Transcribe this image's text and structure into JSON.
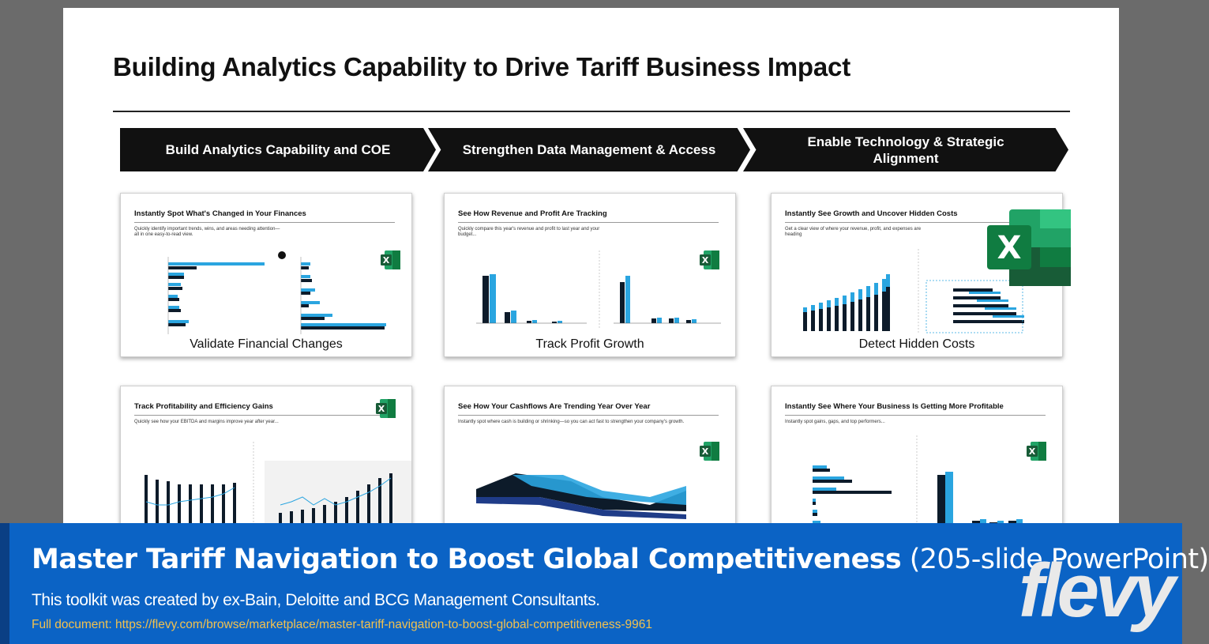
{
  "slide": {
    "title": "Building Analytics Capability to Drive Tariff Business Impact",
    "steps": [
      "Build Analytics Capability and COE",
      "Strengthen Data Management & Access",
      "Enable Technology & Strategic Alignment"
    ],
    "thumbnails": [
      {
        "heading": "Instantly Spot What's Changed in Your Finances",
        "subtitle": "Quickly identify important trends, wins, and areas needing attention—all in one easy-to-read view.",
        "caption": "Validate Financial Changes"
      },
      {
        "heading": "See How Revenue and Profit Are Tracking",
        "subtitle": "Quickly compare this year's revenue and profit to last year and your budget...",
        "caption": "Track Profit Growth"
      },
      {
        "heading": "Instantly See Growth and Uncover Hidden Costs",
        "subtitle": "Get a clear view of where your revenue, profit, and expenses are heading",
        "caption": "Detect Hidden Costs"
      },
      {
        "heading": "Track Profitability and Efficiency Gains",
        "subtitle": "Quickly see how your EBITDA and margins improve year after year...",
        "caption": ""
      },
      {
        "heading": "See How Your Cashflows Are Trending Year Over Year",
        "subtitle": "Instantly spot where cash is building or shrinking—so you can act fast to strengthen your company's growth.",
        "caption": ""
      },
      {
        "heading": "Instantly See Where Your Business Is Getting More Profitable",
        "subtitle": "Instantly spot gains, gaps, and top performers...",
        "caption": ""
      }
    ]
  },
  "banner": {
    "title_bold": "Master Tariff Navigation to Boost Global Competitiveness",
    "title_light": "(205-slide PowerPoint)",
    "credit": "This toolkit was created by ex-Bain, Deloitte and BCG Management Consultants.",
    "link": "Full document: https://flevy.com/browse/marketplace/master-tariff-navigation-to-boost-global-competitiveness-9961",
    "logo": "flevy"
  },
  "colors": {
    "banner_blue": "#0b63c5",
    "link_gold": "#f2c14e",
    "excel_green": "#1d7a45",
    "chart_dark": "#0d1b2a",
    "chart_light": "#2aa5e0"
  },
  "icons": [
    "excel-icon",
    "chevron-arrow"
  ]
}
